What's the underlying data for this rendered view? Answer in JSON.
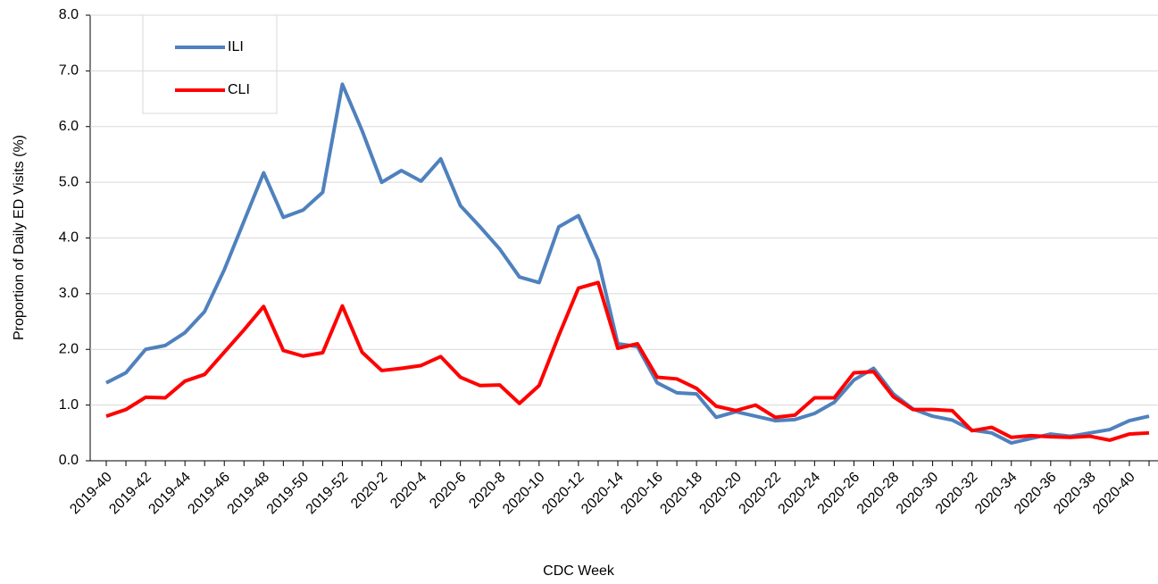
{
  "chart_data": {
    "type": "line",
    "x_label": "CDC Week",
    "y_label": "Proportion of Daily ED Visits (%)",
    "categories": [
      "2019-40",
      null,
      "2019-42",
      null,
      "2019-44",
      null,
      "2019-46",
      null,
      "2019-48",
      null,
      "2019-50",
      null,
      "2019-52",
      null,
      "2020-2",
      null,
      "2020-4",
      null,
      "2020-6",
      null,
      "2020-8",
      null,
      "2020-10",
      null,
      "2020-12",
      null,
      "2020-14",
      null,
      "2020-16",
      null,
      "2020-18",
      null,
      "2020-20",
      null,
      "2020-22",
      null,
      "2020-24",
      null,
      "2020-26",
      null,
      "2020-28",
      null,
      "2020-30",
      null,
      "2020-32",
      null,
      "2020-34",
      null,
      "2020-36",
      null,
      "2020-38",
      null,
      "2020-40",
      null
    ],
    "series": [
      {
        "name": "ILI",
        "color": "#4f81bd",
        "values": [
          1.4,
          1.58,
          2.0,
          2.07,
          2.3,
          2.68,
          3.43,
          4.3,
          5.17,
          4.37,
          4.5,
          4.82,
          6.76,
          5.93,
          5.0,
          5.21,
          5.02,
          5.42,
          4.58,
          4.2,
          3.8,
          3.3,
          3.2,
          4.2,
          4.4,
          3.6,
          2.1,
          2.05,
          1.4,
          1.22,
          1.2,
          0.78,
          0.88,
          0.8,
          0.72,
          0.74,
          0.85,
          1.05,
          1.45,
          1.66,
          1.2,
          0.93,
          0.8,
          0.73,
          0.55,
          0.5,
          0.32,
          0.4,
          0.48,
          0.44,
          0.5,
          0.56,
          0.72,
          0.8
        ]
      },
      {
        "name": "CLI",
        "color": "#ff0000",
        "values": [
          0.8,
          0.92,
          1.14,
          1.13,
          1.43,
          1.55,
          1.95,
          2.35,
          2.77,
          1.98,
          1.88,
          1.94,
          2.78,
          1.95,
          1.62,
          1.66,
          1.71,
          1.87,
          1.5,
          1.35,
          1.36,
          1.03,
          1.35,
          2.25,
          3.1,
          3.2,
          2.02,
          2.1,
          1.5,
          1.47,
          1.3,
          0.98,
          0.9,
          1.0,
          0.78,
          0.82,
          1.13,
          1.13,
          1.58,
          1.6,
          1.15,
          0.92,
          0.92,
          0.9,
          0.54,
          0.6,
          0.42,
          0.45,
          0.43,
          0.42,
          0.44,
          0.37,
          0.48,
          0.5
        ]
      }
    ],
    "ylim": [
      0,
      8
    ],
    "yticks": [
      {
        "value": 0,
        "label": "0.0"
      },
      {
        "value": 1,
        "label": "1.0"
      },
      {
        "value": 2,
        "label": "2.0"
      },
      {
        "value": 3,
        "label": "3.0"
      },
      {
        "value": 4,
        "label": "4.0"
      },
      {
        "value": 5,
        "label": "5.0"
      },
      {
        "value": 6,
        "label": "6.0"
      },
      {
        "value": 7,
        "label": "7.0"
      },
      {
        "value": 8,
        "label": "8.0"
      }
    ],
    "grid": true,
    "legend": "upper-left"
  }
}
